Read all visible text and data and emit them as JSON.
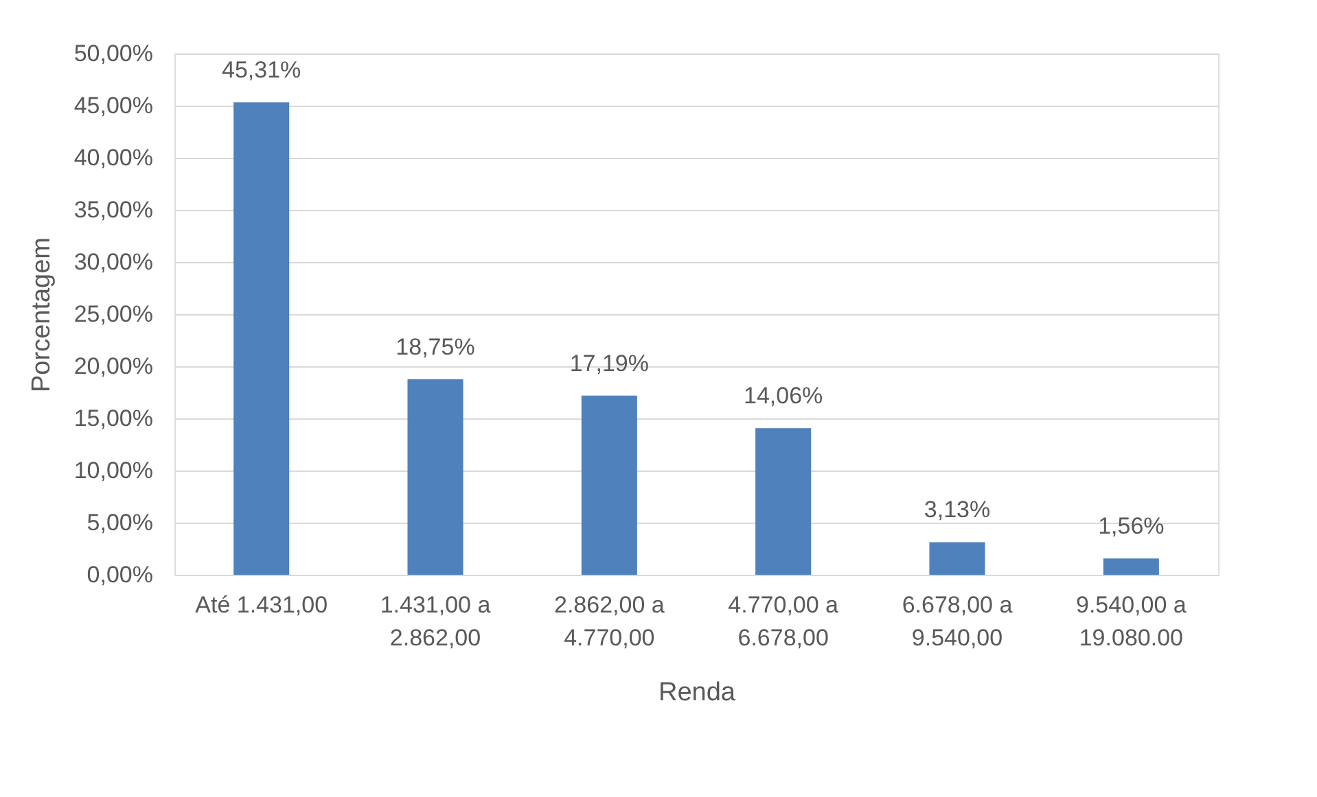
{
  "chart_data": {
    "type": "bar",
    "xlabel": "Renda",
    "ylabel": "Porcentagem",
    "categories": [
      "Até 1.431,00",
      "1.431,00 a\n2.862,00",
      "2.862,00 a\n4.770,00",
      "4.770,00 a\n6.678,00",
      "6.678,00 a\n9.540,00",
      "9.540,00 a\n19.080.00"
    ],
    "values": [
      45.31,
      18.75,
      17.19,
      14.06,
      3.13,
      1.56
    ],
    "value_labels": [
      "45,31%",
      "18,75%",
      "17,19%",
      "14,06%",
      "3,13%",
      "1,56%"
    ],
    "color": "#4f81bd",
    "ylim": [
      0,
      50
    ],
    "yticks": [
      {
        "value": 0,
        "label": "0,00%"
      },
      {
        "value": 5,
        "label": "5,00%"
      },
      {
        "value": 10,
        "label": "10,00%"
      },
      {
        "value": 15,
        "label": "15,00%"
      },
      {
        "value": 20,
        "label": "20,00%"
      },
      {
        "value": 25,
        "label": "25,00%"
      },
      {
        "value": 30,
        "label": "30,00%"
      },
      {
        "value": 35,
        "label": "35,00%"
      },
      {
        "value": 40,
        "label": "40,00%"
      },
      {
        "value": 45,
        "label": "45,00%"
      },
      {
        "value": 50,
        "label": "50,00%"
      }
    ],
    "grid": "y"
  }
}
